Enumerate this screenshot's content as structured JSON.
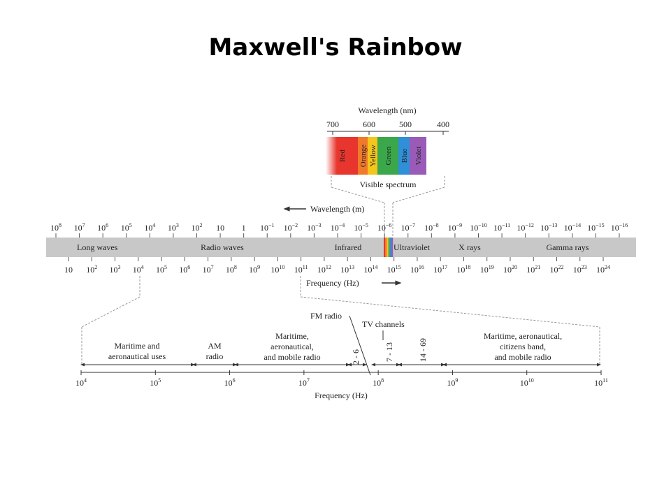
{
  "title": "Maxwell's Rainbow",
  "visible": {
    "axis_label": "Wavelength (nm)",
    "ticks": [
      "700",
      "600",
      "500",
      "400"
    ],
    "bands": [
      {
        "name": "Red",
        "color": "#e8352e"
      },
      {
        "name": "Orange",
        "color": "#f07a2a"
      },
      {
        "name": "Yellow",
        "color": "#f4c51c"
      },
      {
        "name": "Green",
        "color": "#3aa84a"
      },
      {
        "name": "Blue",
        "color": "#2f8fd8"
      },
      {
        "name": "Violet",
        "color": "#9a5bb8"
      }
    ],
    "caption": "Visible spectrum"
  },
  "main": {
    "wavelength_label": "Wavelength (m)",
    "frequency_label": "Frequency (Hz)",
    "wavelength_ticks": [
      {
        "b": "10",
        "e": "8"
      },
      {
        "b": "10",
        "e": "7"
      },
      {
        "b": "10",
        "e": "6"
      },
      {
        "b": "10",
        "e": "5"
      },
      {
        "b": "10",
        "e": "4"
      },
      {
        "b": "10",
        "e": "3"
      },
      {
        "b": "10",
        "e": "2"
      },
      {
        "b": "10",
        "e": ""
      },
      {
        "b": "1",
        "e": ""
      },
      {
        "b": "10",
        "e": "−1"
      },
      {
        "b": "10",
        "e": "−2"
      },
      {
        "b": "10",
        "e": "−3"
      },
      {
        "b": "10",
        "e": "−4"
      },
      {
        "b": "10",
        "e": "−5"
      },
      {
        "b": "10",
        "e": "−6"
      },
      {
        "b": "10",
        "e": "−7"
      },
      {
        "b": "10",
        "e": "−8"
      },
      {
        "b": "10",
        "e": "−9"
      },
      {
        "b": "10",
        "e": "−10"
      },
      {
        "b": "10",
        "e": "−11"
      },
      {
        "b": "10",
        "e": "−12"
      },
      {
        "b": "10",
        "e": "−13"
      },
      {
        "b": "10",
        "e": "−14"
      },
      {
        "b": "10",
        "e": "−15"
      },
      {
        "b": "10",
        "e": "−16"
      }
    ],
    "frequency_ticks": [
      {
        "b": "10",
        "e": ""
      },
      {
        "b": "10",
        "e": "2"
      },
      {
        "b": "10",
        "e": "3"
      },
      {
        "b": "10",
        "e": "4"
      },
      {
        "b": "10",
        "e": "5"
      },
      {
        "b": "10",
        "e": "6"
      },
      {
        "b": "10",
        "e": "7"
      },
      {
        "b": "10",
        "e": "8"
      },
      {
        "b": "10",
        "e": "9"
      },
      {
        "b": "10",
        "e": "10"
      },
      {
        "b": "10",
        "e": "11"
      },
      {
        "b": "10",
        "e": "12"
      },
      {
        "b": "10",
        "e": "13"
      },
      {
        "b": "10",
        "e": "14"
      },
      {
        "b": "10",
        "e": "15"
      },
      {
        "b": "10",
        "e": "16"
      },
      {
        "b": "10",
        "e": "17"
      },
      {
        "b": "10",
        "e": "18"
      },
      {
        "b": "10",
        "e": "19"
      },
      {
        "b": "10",
        "e": "20"
      },
      {
        "b": "10",
        "e": "21"
      },
      {
        "b": "10",
        "e": "22"
      },
      {
        "b": "10",
        "e": "23"
      },
      {
        "b": "10",
        "e": "24"
      }
    ],
    "regions": [
      "Long waves",
      "Radio waves",
      "Infrared",
      "Ultraviolet",
      "X rays",
      "Gamma rays"
    ]
  },
  "radio": {
    "frequency_label": "Frequency (Hz)",
    "fm_label": "FM radio",
    "tv_label": "TV channels",
    "ticks": [
      {
        "b": "10",
        "e": "4"
      },
      {
        "b": "10",
        "e": "5"
      },
      {
        "b": "10",
        "e": "6"
      },
      {
        "b": "10",
        "e": "7"
      },
      {
        "b": "10",
        "e": "8"
      },
      {
        "b": "10",
        "e": "9"
      },
      {
        "b": "10",
        "e": "10"
      },
      {
        "b": "10",
        "e": "11"
      }
    ],
    "maritime1": [
      "Maritime and",
      "aeronautical uses"
    ],
    "am": [
      "AM",
      "radio"
    ],
    "maritime2": [
      "Maritime,",
      "aeronautical,",
      "and mobile radio"
    ],
    "ch1": "2 - 6",
    "ch2": "7 - 13",
    "ch3": "14 - 69",
    "maritime3": [
      "Maritime, aeronautical,",
      "citizens band,",
      "and mobile radio"
    ]
  }
}
